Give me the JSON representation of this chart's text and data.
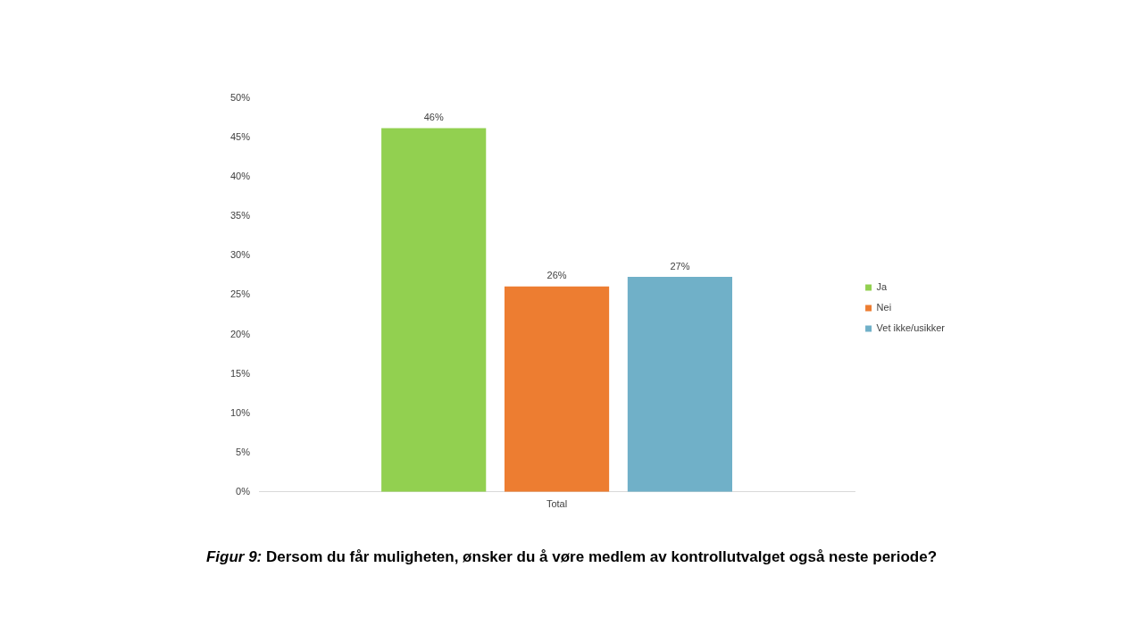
{
  "chart_data": {
    "type": "bar",
    "title": "Figur 9: Dersom du får muligheten, ønsker du å vøre medlem av kontrollutvalget også neste periode?",
    "categories": [
      "Total"
    ],
    "series": [
      {
        "name": "Ja",
        "color": "#92d050",
        "values": [
          46.2
        ],
        "value_labels": [
          "46%"
        ]
      },
      {
        "name": "Nei",
        "color": "#ed7d31",
        "values": [
          26.1
        ],
        "value_labels": [
          "26%"
        ]
      },
      {
        "name": "Vet ikke/usikker",
        "color": "#70b0c8",
        "values": [
          27.3
        ],
        "value_labels": [
          "27%"
        ]
      }
    ],
    "ylim": [
      0,
      50
    ],
    "yticks": [
      {
        "value": 0,
        "label": "0%"
      },
      {
        "value": 5,
        "label": "5%"
      },
      {
        "value": 10,
        "label": "10%"
      },
      {
        "value": 15,
        "label": "15%"
      },
      {
        "value": 20,
        "label": "20%"
      },
      {
        "value": 25,
        "label": "25%"
      },
      {
        "value": 30,
        "label": "30%"
      },
      {
        "value": 35,
        "label": "35%"
      },
      {
        "value": 40,
        "label": "40%"
      },
      {
        "value": 45,
        "label": "45%"
      },
      {
        "value": 50,
        "label": "50%"
      }
    ],
    "grid": false,
    "legend": "right"
  }
}
